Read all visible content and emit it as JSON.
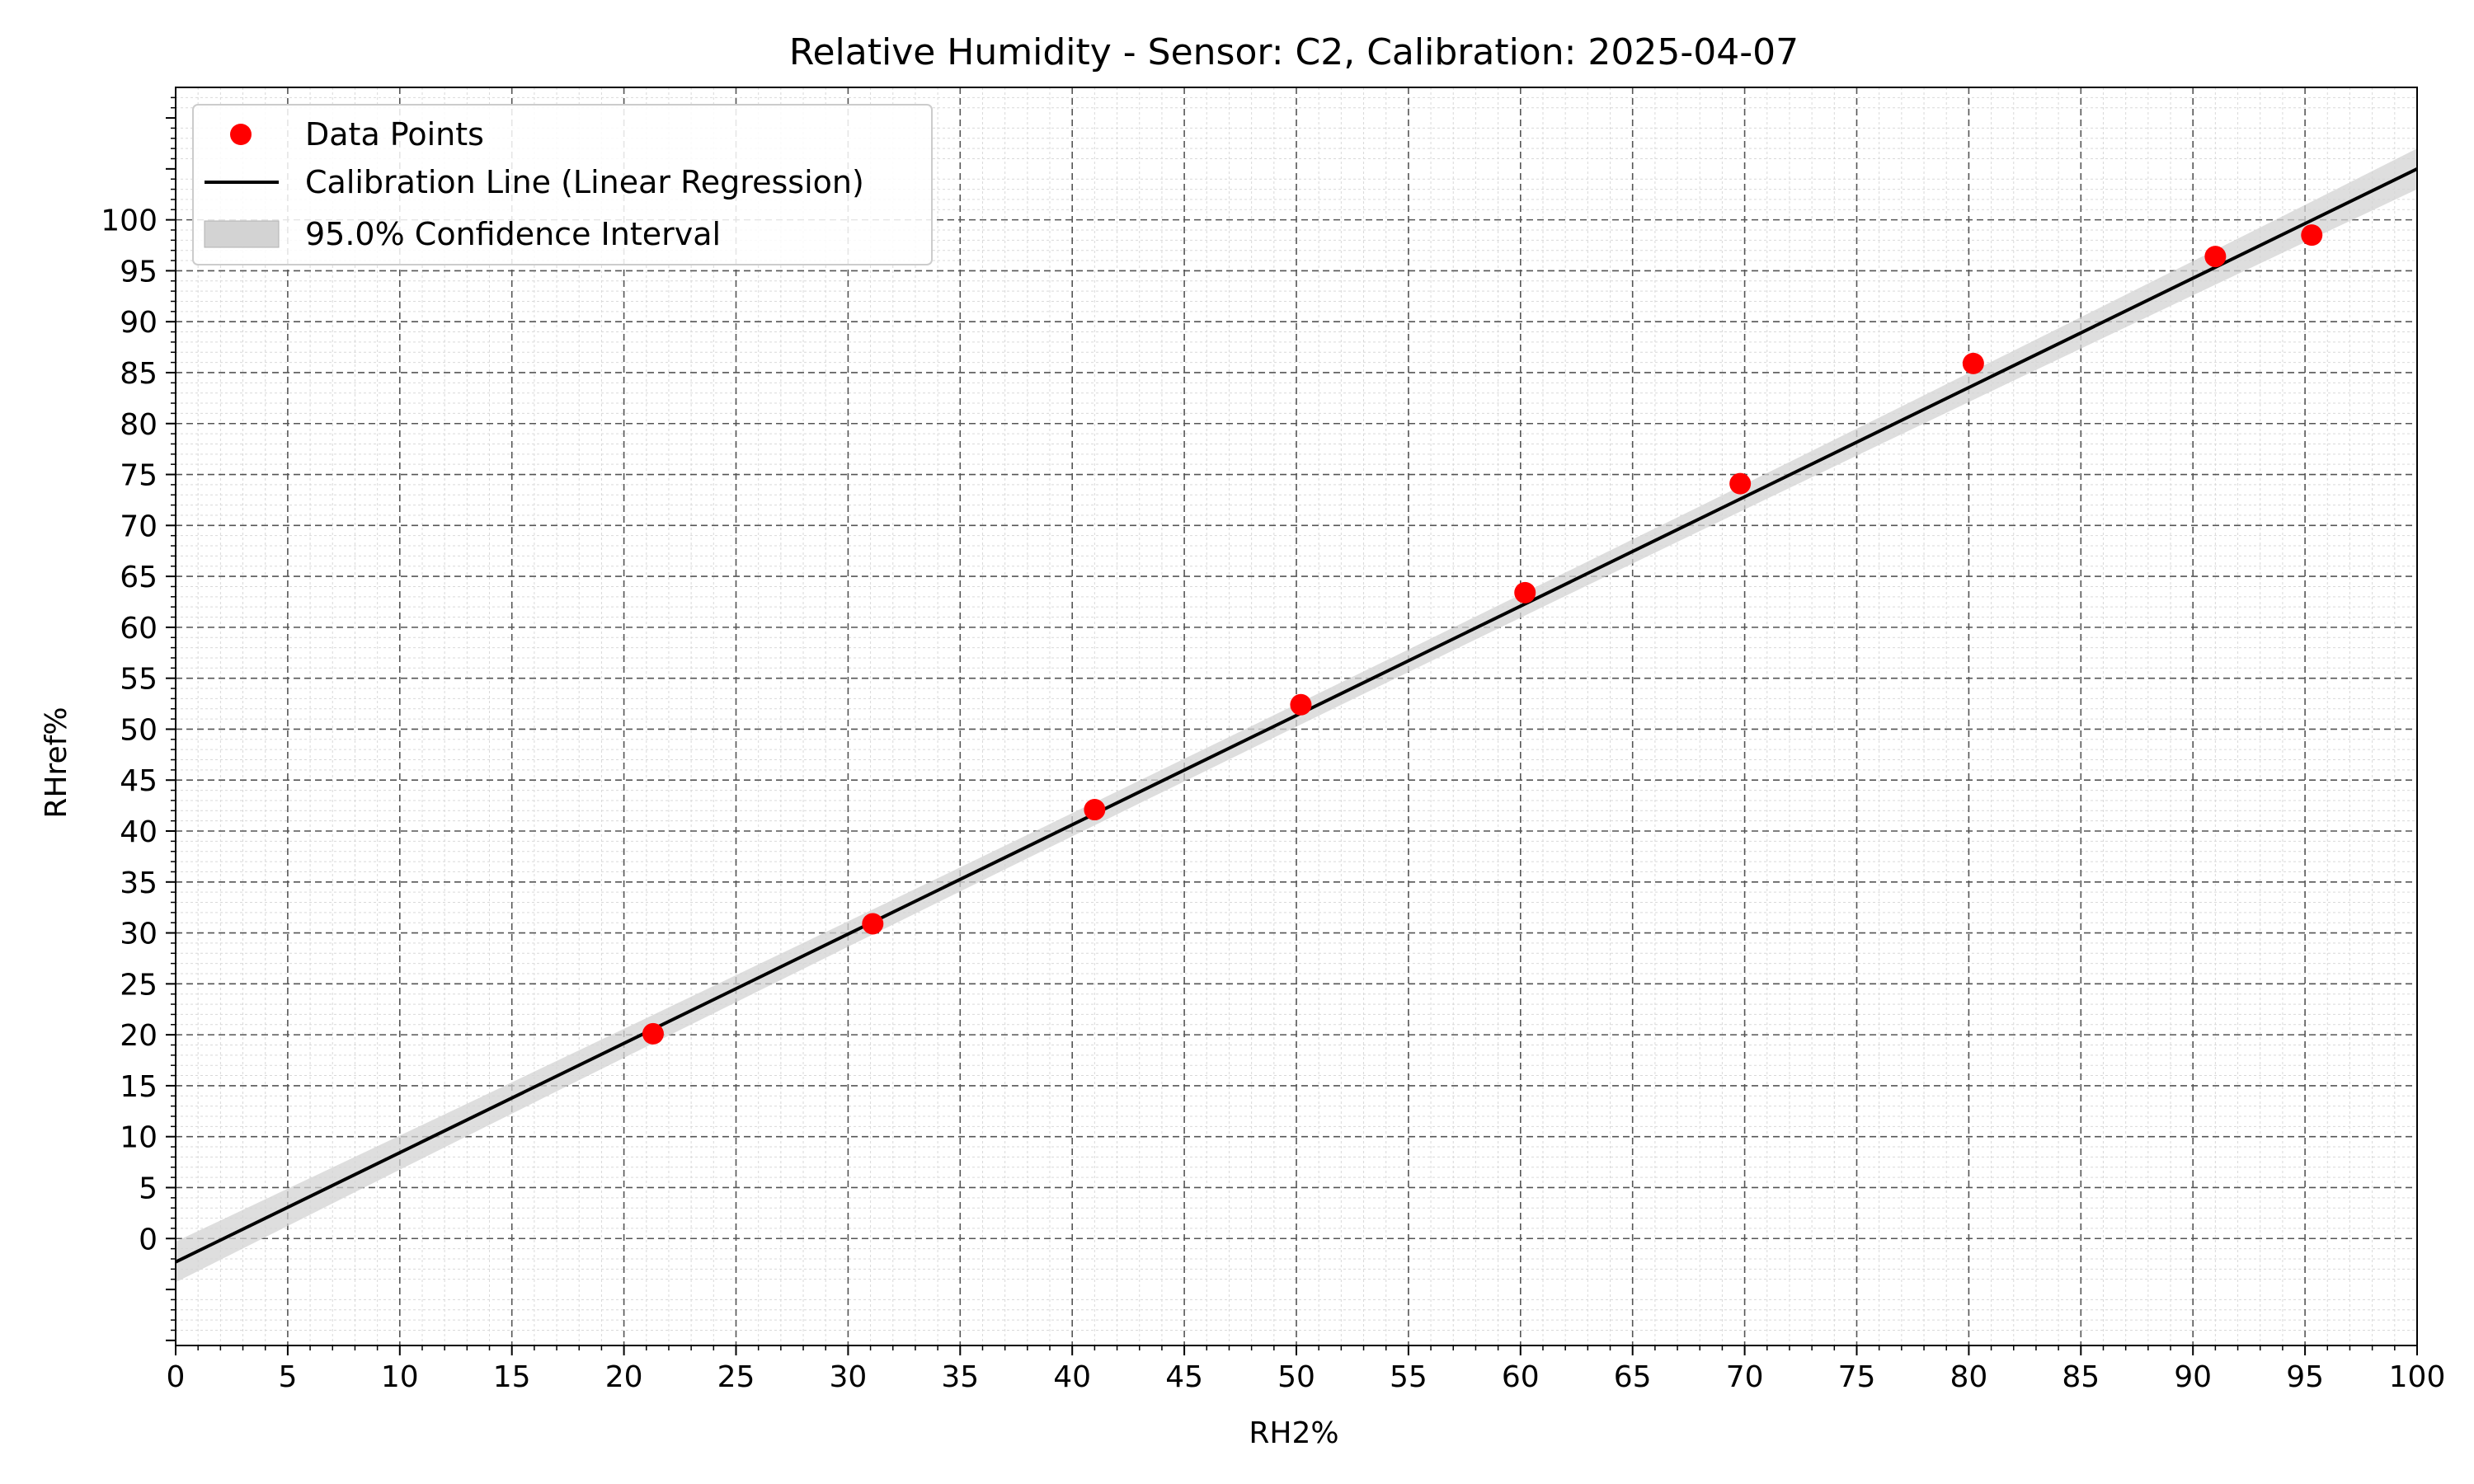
{
  "chart_data": {
    "type": "scatter",
    "title": "Relative Humidity - Sensor: C2, Calibration: 2025-04-07",
    "xlabel": "RH2%",
    "ylabel": "RHref%",
    "xlim": [
      0,
      100
    ],
    "ylim": [
      -10.5,
      113
    ],
    "xticks": [
      0,
      5,
      10,
      15,
      20,
      25,
      30,
      35,
      40,
      45,
      50,
      55,
      60,
      65,
      70,
      75,
      80,
      85,
      90,
      95,
      100
    ],
    "yticks": [
      0,
      5,
      10,
      15,
      20,
      25,
      30,
      35,
      40,
      45,
      50,
      55,
      60,
      65,
      70,
      75,
      80,
      85,
      90,
      95,
      100
    ],
    "grid": true,
    "legend_position": "top-left",
    "series": [
      {
        "name": "Data Points",
        "kind": "scatter",
        "color": "#ff0000",
        "points": [
          {
            "x": 21.3,
            "y": 20.1
          },
          {
            "x": 31.1,
            "y": 30.9
          },
          {
            "x": 41.0,
            "y": 42.1
          },
          {
            "x": 50.2,
            "y": 52.4
          },
          {
            "x": 60.2,
            "y": 63.4
          },
          {
            "x": 69.8,
            "y": 74.1
          },
          {
            "x": 80.2,
            "y": 85.9
          },
          {
            "x": 91.0,
            "y": 96.4
          },
          {
            "x": 95.3,
            "y": 98.5
          }
        ]
      },
      {
        "name": "Calibration Line (Linear Regression)",
        "kind": "line",
        "color": "#000000",
        "slope": 1.073,
        "intercept": -2.3
      },
      {
        "name": "95.0% Confidence Interval",
        "kind": "band",
        "color": "#d3d3d3",
        "half_width_at_ends": 2.0,
        "half_width_at_center": 1.1
      }
    ]
  }
}
